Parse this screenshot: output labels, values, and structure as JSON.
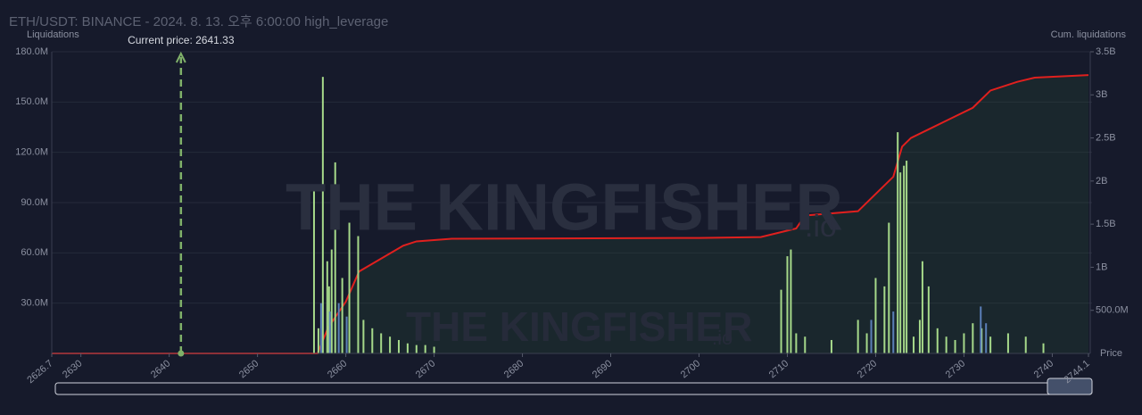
{
  "chart_data": {
    "type": "bar",
    "title": "ETH/USDT: BINANCE - 2024. 8. 13. 오후 6:00:00 high_leverage",
    "y_label": "Liquidations",
    "y2_label": "Cum. liquidations",
    "x_label": "Price",
    "watermark": "THE KINGFISHER",
    "watermark_suffix": ".io",
    "current_price": 2641.33,
    "current_price_label": "Current price: 2641.33",
    "current_price_color": "#7fb069",
    "xlim": [
      2626.7,
      2744.1
    ],
    "xticks": [
      2626.7,
      2630,
      2640,
      2650,
      2660,
      2670,
      2680,
      2690,
      2700,
      2710,
      2720,
      2730,
      2740,
      2744.1
    ],
    "ylim": [
      0,
      180000000
    ],
    "yticks": [
      {
        "value": 30000000,
        "label": "30.0M"
      },
      {
        "value": 60000000,
        "label": "60.0M"
      },
      {
        "value": 90000000,
        "label": "90.0M"
      },
      {
        "value": 120000000,
        "label": "120.0M"
      },
      {
        "value": 150000000,
        "label": "150.0M"
      },
      {
        "value": 180000000,
        "label": "180.0M"
      }
    ],
    "y2lim": [
      0,
      3500000000
    ],
    "y2ticks": [
      {
        "value": 500000000,
        "label": "500.0M"
      },
      {
        "value": 1000000000,
        "label": "1B"
      },
      {
        "value": 1500000000,
        "label": "1.5B"
      },
      {
        "value": 2000000000,
        "label": "2B"
      },
      {
        "value": 2500000000,
        "label": "2.5B"
      },
      {
        "value": 3000000000,
        "label": "3B"
      },
      {
        "value": 3500000000,
        "label": "3.5B"
      }
    ],
    "grid": true,
    "series": [
      {
        "color": "#a6d98a",
        "x": [
          2656.4,
          2656.9,
          2657.4,
          2657.9,
          2658.1,
          2658.4,
          2658.8,
          2659.6,
          2660.4,
          2661.4,
          2662,
          2663,
          2664,
          2665,
          2666,
          2667,
          2668,
          2669,
          2670,
          2709.3,
          2710,
          2710.4,
          2711,
          2712,
          2715,
          2718,
          2719,
          2720,
          2721,
          2721.5,
          2722.5,
          2722.8,
          2723.2,
          2723.5,
          2724.3,
          2725,
          2725.3,
          2726,
          2727,
          2728,
          2729,
          2730,
          2731,
          2732,
          2733,
          2735,
          2737,
          2739
        ],
        "values": [
          100000000,
          15000000,
          165000000,
          55000000,
          40000000,
          62000000,
          114000000,
          45000000,
          78000000,
          70000000,
          20000000,
          15000000,
          12000000,
          10000000,
          8000000,
          6000000,
          5000000,
          5000000,
          4000000,
          38000000,
          58000000,
          62000000,
          12000000,
          10000000,
          8000000,
          20000000,
          12000000,
          45000000,
          40000000,
          78000000,
          132000000,
          108000000,
          112000000,
          115000000,
          10000000,
          20000000,
          55000000,
          40000000,
          15000000,
          10000000,
          8000000,
          12000000,
          18000000,
          15000000,
          10000000,
          12000000,
          10000000,
          6000000
        ]
      },
      {
        "color": "#5b7fb8",
        "x": [
          2657.2,
          2658.2,
          2659.2,
          2660.1,
          2719.5,
          2722,
          2731.9,
          2732.5
        ],
        "values": [
          30000000,
          25000000,
          30000000,
          22000000,
          20000000,
          25000000,
          28000000,
          18000000
        ]
      },
      {
        "type": "line",
        "axis": "y2",
        "color": "#e0201e",
        "fill": "rgba(40,80,50,0.25)",
        "x": [
          2626.7,
          2656.8,
          2658,
          2660,
          2661.5,
          2664,
          2666.5,
          2668,
          2672,
          2700,
          2707,
          2711,
          2712,
          2718,
          2720,
          2722,
          2723,
          2724,
          2726,
          2728,
          2731,
          2733,
          2736,
          2738,
          2744.1
        ],
        "values": [
          0,
          0,
          300000000,
          600000000,
          950000000,
          1100000000,
          1250000000,
          1300000000,
          1330000000,
          1340000000,
          1350000000,
          1450000000,
          1600000000,
          1650000000,
          1850000000,
          2050000000,
          2400000000,
          2500000000,
          2600000000,
          2700000000,
          2850000000,
          3050000000,
          3150000000,
          3200000000,
          3230000000
        ]
      }
    ]
  }
}
